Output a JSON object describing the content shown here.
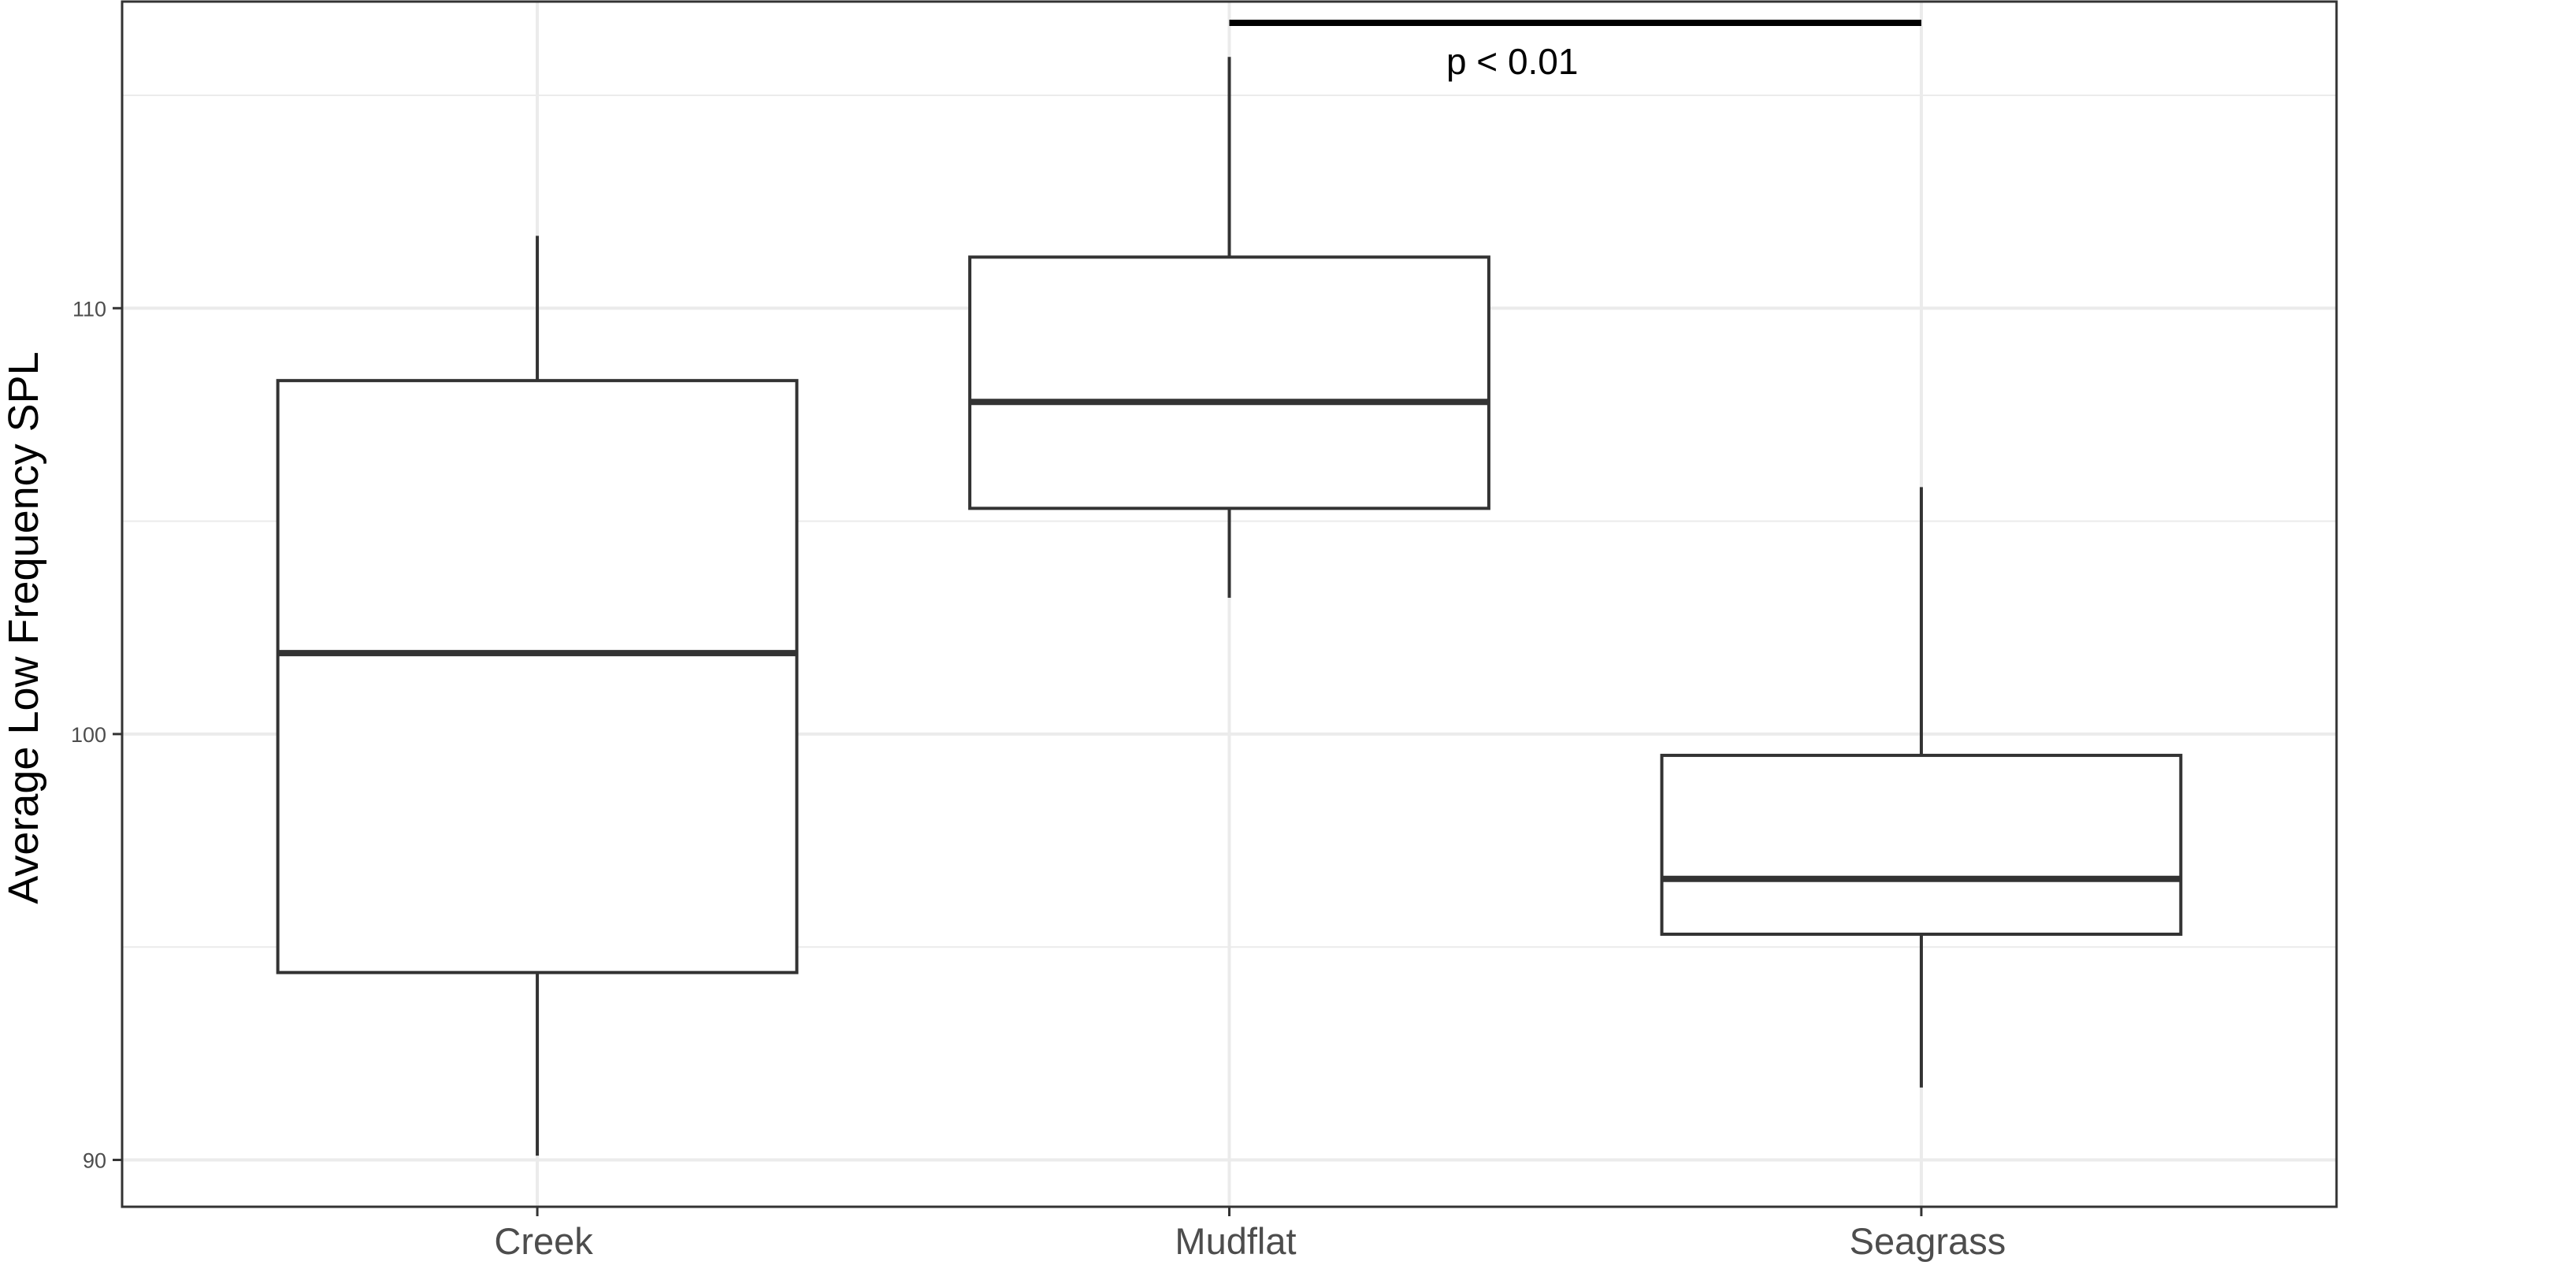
{
  "chart_data": {
    "type": "box",
    "categories": [
      "Creek",
      "Mudflat",
      "Seagrass"
    ],
    "boxes": [
      {
        "category": "Creek",
        "whisker_low": 90.1,
        "q1": 94.4,
        "median": 101.9,
        "q3": 108.3,
        "whisker_high": 111.7
      },
      {
        "category": "Mudflat",
        "whisker_low": 103.2,
        "q1": 105.3,
        "median": 107.8,
        "q3": 111.2,
        "whisker_high": 115.9
      },
      {
        "category": "Seagrass",
        "whisker_low": 91.7,
        "q1": 95.3,
        "median": 96.6,
        "q3": 99.5,
        "whisker_high": 105.8
      }
    ],
    "xlabel": "",
    "ylabel": "Average Low Frequency SPL",
    "ylim": [
      88.9,
      117.2
    ],
    "yticks": [
      90,
      100,
      110
    ],
    "ytick_labels": [
      "90",
      "100",
      "110"
    ],
    "grid": true,
    "annotation": {
      "text": "p < 0.01",
      "from": "Mudflat",
      "to": "Seagrass",
      "y": 116.7
    },
    "colors": {
      "box_stroke": "#333333",
      "box_fill": "#ffffff",
      "grid": "#ebebeb",
      "panel_border": "#333333",
      "bracket": "#000000"
    }
  }
}
